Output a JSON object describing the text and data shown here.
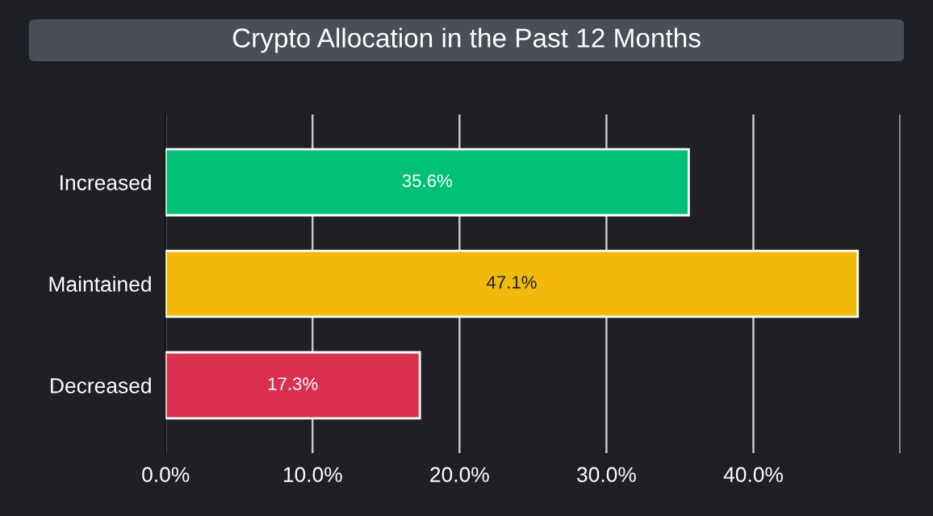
{
  "chart_data": {
    "type": "bar",
    "orientation": "horizontal",
    "title": "Crypto Allocation in the Past 12 Months",
    "categories": [
      "Increased",
      "Maintained",
      "Decreased"
    ],
    "values": [
      35.6,
      47.1,
      17.3
    ],
    "colors": [
      "#02c076",
      "#f0b90b",
      "#d9304e"
    ],
    "value_labels": [
      "35.6%",
      "47.1%",
      "17.3%"
    ],
    "xlim": [
      0,
      50
    ],
    "xticks": [
      {
        "value": 0,
        "label": "0.0%"
      },
      {
        "value": 10,
        "label": "10.0%"
      },
      {
        "value": 20,
        "label": "20.0%"
      },
      {
        "value": 30,
        "label": "30.0%"
      },
      {
        "value": 40,
        "label": "40.0%"
      },
      {
        "value": 50,
        "label": null
      }
    ],
    "grid": "x",
    "legend": false
  }
}
